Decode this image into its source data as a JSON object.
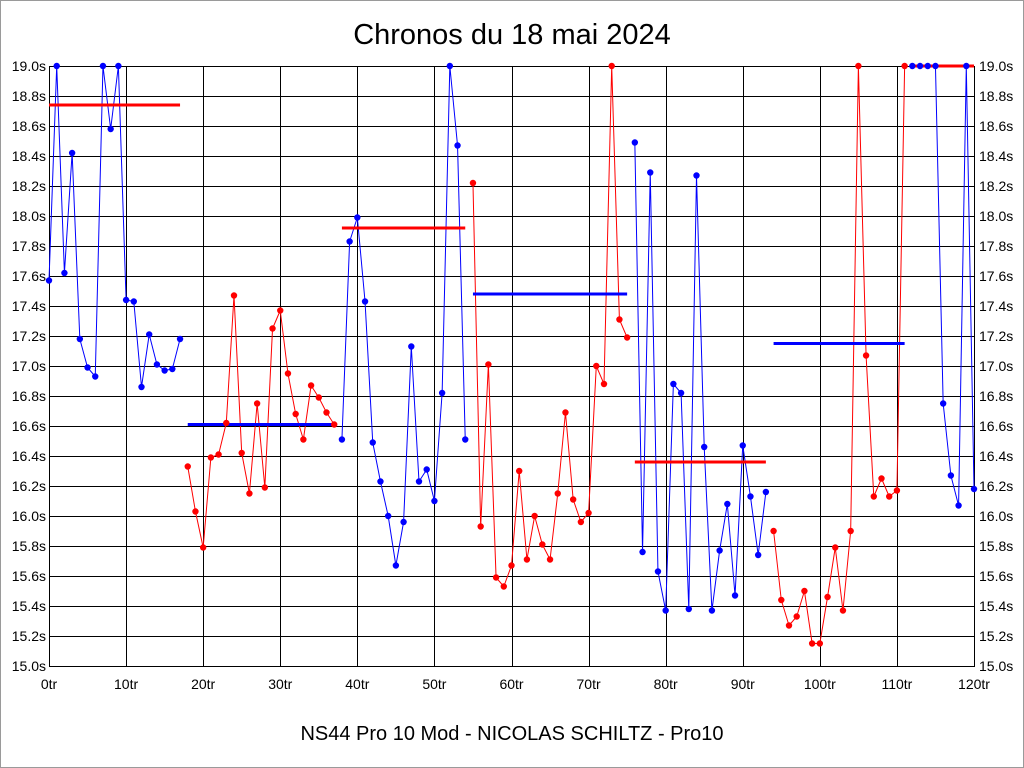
{
  "chart_data": {
    "type": "line",
    "title": "Chronos du 18 mai 2024",
    "subtitle": "NS44 Pro 10 Mod - NICOLAS SCHILTZ - Pro10",
    "xlabel": "",
    "ylabel": "",
    "xlim": [
      0,
      120
    ],
    "ylim": [
      15.0,
      19.0
    ],
    "x_ticks": [
      0,
      10,
      20,
      30,
      40,
      50,
      60,
      70,
      80,
      90,
      100,
      110,
      120
    ],
    "x_tick_labels": [
      "0tr",
      "10tr",
      "20tr",
      "30tr",
      "40tr",
      "50tr",
      "60tr",
      "70tr",
      "80tr",
      "90tr",
      "100tr",
      "110tr",
      "120tr"
    ],
    "y_ticks": [
      15.0,
      15.2,
      15.4,
      15.6,
      15.8,
      16.0,
      16.2,
      16.4,
      16.6,
      16.8,
      17.0,
      17.2,
      17.4,
      17.6,
      17.8,
      18.0,
      18.2,
      18.4,
      18.6,
      18.8,
      19.0
    ],
    "y_tick_labels": [
      "15.0s",
      "15.2s",
      "15.4s",
      "15.6s",
      "15.8s",
      "16.0s",
      "16.2s",
      "16.4s",
      "16.6s",
      "16.8s",
      "17.0s",
      "17.2s",
      "17.4s",
      "17.6s",
      "17.8s",
      "18.0s",
      "18.2s",
      "18.4s",
      "18.6s",
      "18.8s",
      "19.0s"
    ],
    "y_tick_label_sides": [
      "left",
      "right"
    ],
    "grid": true,
    "legend": "none",
    "markers": true,
    "segments": [
      {
        "color": "#0000ff",
        "reference_value": 18.74,
        "reference_color": "#ff0000",
        "x": [
          0,
          1,
          2,
          3,
          4,
          5,
          6,
          7,
          8,
          9,
          10,
          11,
          12,
          13,
          14,
          15,
          16,
          17
        ],
        "y": [
          17.57,
          19.0,
          17.62,
          18.42,
          17.18,
          16.99,
          16.93,
          19.0,
          18.58,
          19.0,
          17.44,
          17.43,
          16.86,
          17.21,
          17.01,
          16.97,
          16.98,
          17.18
        ]
      },
      {
        "color": "#ff0000",
        "reference_value": 16.61,
        "reference_color": "#0000ff",
        "x": [
          18,
          19,
          20,
          21,
          22,
          23,
          24,
          25,
          26,
          27,
          28,
          29,
          30,
          31,
          32,
          33,
          34,
          35,
          36,
          37
        ],
        "y": [
          16.33,
          16.03,
          15.79,
          16.39,
          16.41,
          16.62,
          17.47,
          16.42,
          16.15,
          16.75,
          16.19,
          17.25,
          17.37,
          16.95,
          16.68,
          16.51,
          16.87,
          16.79,
          16.69,
          16.61
        ]
      },
      {
        "color": "#0000ff",
        "reference_value": 17.92,
        "reference_color": "#ff0000",
        "x": [
          38,
          39,
          40,
          41,
          42,
          43,
          44,
          45,
          46,
          47,
          48,
          49,
          50,
          51,
          52,
          53,
          54
        ],
        "y": [
          16.51,
          17.83,
          17.99,
          17.43,
          16.49,
          16.23,
          16.0,
          15.67,
          15.96,
          17.13,
          16.23,
          16.31,
          16.1,
          16.82,
          19.0,
          18.47,
          16.51
        ]
      },
      {
        "color": "#ff0000",
        "reference_value": 17.48,
        "reference_color": "#0000ff",
        "x": [
          55,
          56,
          57,
          58,
          59,
          60,
          61,
          62,
          63,
          64,
          65,
          66,
          67,
          68,
          69,
          70,
          71,
          72,
          73,
          74,
          75
        ],
        "y": [
          18.22,
          15.93,
          17.01,
          15.59,
          15.53,
          15.67,
          16.3,
          15.71,
          16.0,
          15.81,
          15.71,
          16.15,
          16.69,
          16.11,
          15.96,
          16.02,
          17.0,
          16.88,
          19.0,
          17.31,
          17.19
        ]
      },
      {
        "color": "#0000ff",
        "reference_value": 16.36,
        "reference_color": "#ff0000",
        "x": [
          76,
          77,
          78,
          79,
          80,
          81,
          82,
          83,
          84,
          85,
          86,
          87,
          88,
          89,
          90,
          91,
          92,
          93
        ],
        "y": [
          18.49,
          15.76,
          18.29,
          15.63,
          15.37,
          16.88,
          16.82,
          15.38,
          18.27,
          16.46,
          15.37,
          15.77,
          16.08,
          15.47,
          16.47,
          16.13,
          15.74,
          16.16
        ]
      },
      {
        "color": "#ff0000",
        "reference_value": 17.15,
        "reference_color": "#0000ff",
        "x": [
          94,
          95,
          96,
          97,
          98,
          99,
          100,
          101,
          102,
          103,
          104,
          105,
          106,
          107,
          108,
          109,
          110,
          111
        ],
        "y": [
          15.9,
          15.44,
          15.27,
          15.33,
          15.5,
          15.15,
          15.15,
          15.46,
          15.79,
          15.37,
          15.9,
          19.0,
          17.07,
          16.13,
          16.25,
          16.13,
          16.17,
          19.0
        ]
      },
      {
        "color": "#0000ff",
        "reference_value": 19.0,
        "reference_color": "#ff0000",
        "x": [
          112,
          113,
          114,
          115,
          116,
          117,
          118,
          119,
          120
        ],
        "y": [
          19.0,
          19.0,
          19.0,
          19.0,
          16.75,
          16.27,
          16.07,
          19.0,
          16.18
        ]
      }
    ]
  }
}
